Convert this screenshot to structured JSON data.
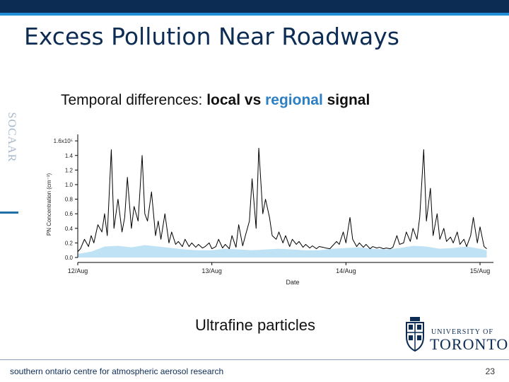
{
  "slide": {
    "title": "Excess Pollution Near Roadways",
    "side_text": "SOCAAR",
    "subtitle_prefix": "Temporal differences: ",
    "subtitle_local": "local",
    "subtitle_vs": " vs ",
    "subtitle_regional": "regional",
    "subtitle_signal": " signal",
    "caption": "Ultrafine particles",
    "logo_line1": "UNIVERSITY OF",
    "logo_line2": "TORONTO",
    "footer": "southern ontario centre for atmospheric aerosol research",
    "page_number": "23"
  },
  "colors": {
    "header_navy": "#0c2c54",
    "accent_blue": "#1f8ed6",
    "regional_fill": "#bfe3f5",
    "local_line": "#000000"
  },
  "chart_data": {
    "type": "area",
    "xlabel": "Date",
    "ylabel": "PN Concentration (cm⁻³)",
    "x_range": [
      0,
      3.1
    ],
    "ylim": [
      0,
      1.65
    ],
    "y_scale_note": "x10⁵",
    "y_ticks": [
      0.0,
      0.2,
      0.4,
      0.6,
      0.8,
      1.0,
      1.2,
      1.4,
      1.6
    ],
    "y_tick_labels": [
      "0.0",
      "0.2",
      "0.4",
      "0.6",
      "0.8",
      "1.0",
      "1.2",
      "1.4",
      "1.6x10⁵"
    ],
    "x_ticks": [
      0,
      1,
      2,
      3
    ],
    "x_tick_labels": [
      "12/Aug",
      "13/Aug",
      "14/Aug",
      "15/Aug"
    ],
    "grid": false,
    "series": [
      {
        "type": "area",
        "x": [
          0.0,
          0.1,
          0.2,
          0.3,
          0.4,
          0.5,
          0.6,
          0.7,
          0.8,
          0.9,
          1.0,
          1.1,
          1.2,
          1.3,
          1.4,
          1.5,
          1.6,
          1.7,
          1.8,
          1.9,
          2.0,
          2.1,
          2.2,
          2.3,
          2.4,
          2.5,
          2.6,
          2.7,
          2.8,
          2.9,
          3.0,
          3.05
        ],
        "values": [
          0.05,
          0.08,
          0.15,
          0.16,
          0.14,
          0.17,
          0.15,
          0.13,
          0.11,
          0.1,
          0.1,
          0.12,
          0.11,
          0.1,
          0.11,
          0.12,
          0.11,
          0.1,
          0.1,
          0.12,
          0.13,
          0.14,
          0.12,
          0.11,
          0.13,
          0.16,
          0.15,
          0.12,
          0.13,
          0.15,
          0.12,
          0.1
        ]
      },
      {
        "type": "line",
        "x": [
          0.0,
          0.02,
          0.05,
          0.08,
          0.1,
          0.12,
          0.15,
          0.18,
          0.2,
          0.22,
          0.25,
          0.27,
          0.3,
          0.33,
          0.35,
          0.37,
          0.4,
          0.42,
          0.45,
          0.48,
          0.5,
          0.52,
          0.55,
          0.58,
          0.6,
          0.62,
          0.65,
          0.68,
          0.7,
          0.73,
          0.75,
          0.78,
          0.8,
          0.83,
          0.85,
          0.88,
          0.9,
          0.93,
          0.95,
          0.98,
          1.0,
          1.03,
          1.05,
          1.08,
          1.1,
          1.13,
          1.15,
          1.18,
          1.2,
          1.23,
          1.25,
          1.28,
          1.3,
          1.33,
          1.35,
          1.38,
          1.4,
          1.43,
          1.45,
          1.48,
          1.5,
          1.53,
          1.55,
          1.58,
          1.6,
          1.63,
          1.65,
          1.68,
          1.7,
          1.73,
          1.75,
          1.78,
          1.8,
          1.83,
          1.85,
          1.88,
          1.9,
          1.93,
          1.95,
          1.98,
          2.0,
          2.03,
          2.05,
          2.08,
          2.1,
          2.13,
          2.15,
          2.18,
          2.2,
          2.23,
          2.25,
          2.28,
          2.3,
          2.33,
          2.35,
          2.38,
          2.4,
          2.43,
          2.45,
          2.48,
          2.5,
          2.53,
          2.55,
          2.58,
          2.6,
          2.63,
          2.65,
          2.68,
          2.7,
          2.73,
          2.75,
          2.78,
          2.8,
          2.83,
          2.85,
          2.88,
          2.9,
          2.93,
          2.95,
          2.98,
          3.0,
          3.03,
          3.05
        ],
        "values": [
          0.08,
          0.12,
          0.25,
          0.15,
          0.3,
          0.2,
          0.45,
          0.35,
          0.6,
          0.3,
          1.48,
          0.4,
          0.8,
          0.35,
          0.55,
          1.1,
          0.4,
          0.7,
          0.5,
          1.4,
          0.6,
          0.5,
          0.9,
          0.3,
          0.5,
          0.25,
          0.6,
          0.2,
          0.35,
          0.18,
          0.22,
          0.15,
          0.25,
          0.15,
          0.2,
          0.14,
          0.18,
          0.13,
          0.15,
          0.2,
          0.12,
          0.15,
          0.25,
          0.13,
          0.18,
          0.12,
          0.3,
          0.14,
          0.45,
          0.16,
          0.3,
          0.5,
          1.08,
          0.4,
          1.5,
          0.6,
          0.8,
          0.55,
          0.3,
          0.25,
          0.35,
          0.2,
          0.3,
          0.15,
          0.25,
          0.18,
          0.22,
          0.14,
          0.18,
          0.13,
          0.16,
          0.12,
          0.15,
          0.14,
          0.13,
          0.12,
          0.16,
          0.22,
          0.18,
          0.35,
          0.2,
          0.55,
          0.25,
          0.15,
          0.2,
          0.14,
          0.18,
          0.12,
          0.15,
          0.13,
          0.14,
          0.12,
          0.13,
          0.12,
          0.14,
          0.3,
          0.18,
          0.2,
          0.35,
          0.22,
          0.4,
          0.25,
          0.55,
          1.48,
          0.5,
          0.95,
          0.3,
          0.6,
          0.25,
          0.4,
          0.22,
          0.28,
          0.2,
          0.35,
          0.18,
          0.25,
          0.15,
          0.3,
          0.55,
          0.2,
          0.42,
          0.15,
          0.12
        ]
      }
    ]
  }
}
